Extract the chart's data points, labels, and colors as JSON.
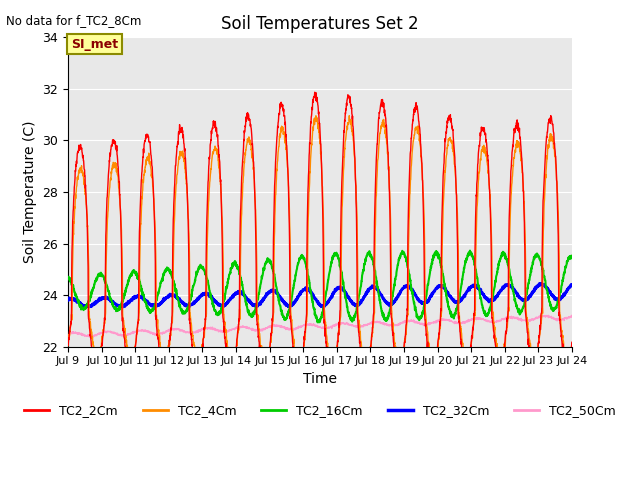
{
  "title": "Soil Temperatures Set 2",
  "subtitle": "No data for f_TC2_8Cm",
  "xlabel": "Time",
  "ylabel": "Soil Temperature (C)",
  "ylim": [
    22,
    34
  ],
  "yticks": [
    22,
    24,
    26,
    28,
    30,
    32,
    34
  ],
  "xlim": [
    0,
    360
  ],
  "xtick_positions": [
    0,
    24,
    48,
    72,
    96,
    120,
    144,
    168,
    192,
    216,
    240,
    264,
    288,
    312,
    336,
    360
  ],
  "xtick_labels": [
    "Jul 9",
    "Jul 10",
    "Jul 11",
    "Jul 12",
    "Jul 13",
    "Jul 14",
    "Jul 15",
    "Jul 16",
    "Jul 17",
    "Jul 18",
    "Jul 19",
    "Jul 20",
    "Jul 21",
    "Jul 22",
    "Jul 23",
    "Jul 24"
  ],
  "legend_labels": [
    "TC2_2Cm",
    "TC2_4Cm",
    "TC2_16Cm",
    "TC2_32Cm",
    "TC2_50Cm"
  ],
  "colors": {
    "TC2_2Cm": "#FF0000",
    "TC2_4Cm": "#FF8C00",
    "TC2_16Cm": "#00CC00",
    "TC2_32Cm": "#0000FF",
    "TC2_50Cm": "#FF99CC"
  },
  "line_widths": {
    "TC2_2Cm": 1.0,
    "TC2_4Cm": 1.0,
    "TC2_16Cm": 1.5,
    "TC2_32Cm": 2.0,
    "TC2_50Cm": 1.0
  },
  "annotation_text": "SI_met",
  "plot_bg_color": "#E8E8E8"
}
